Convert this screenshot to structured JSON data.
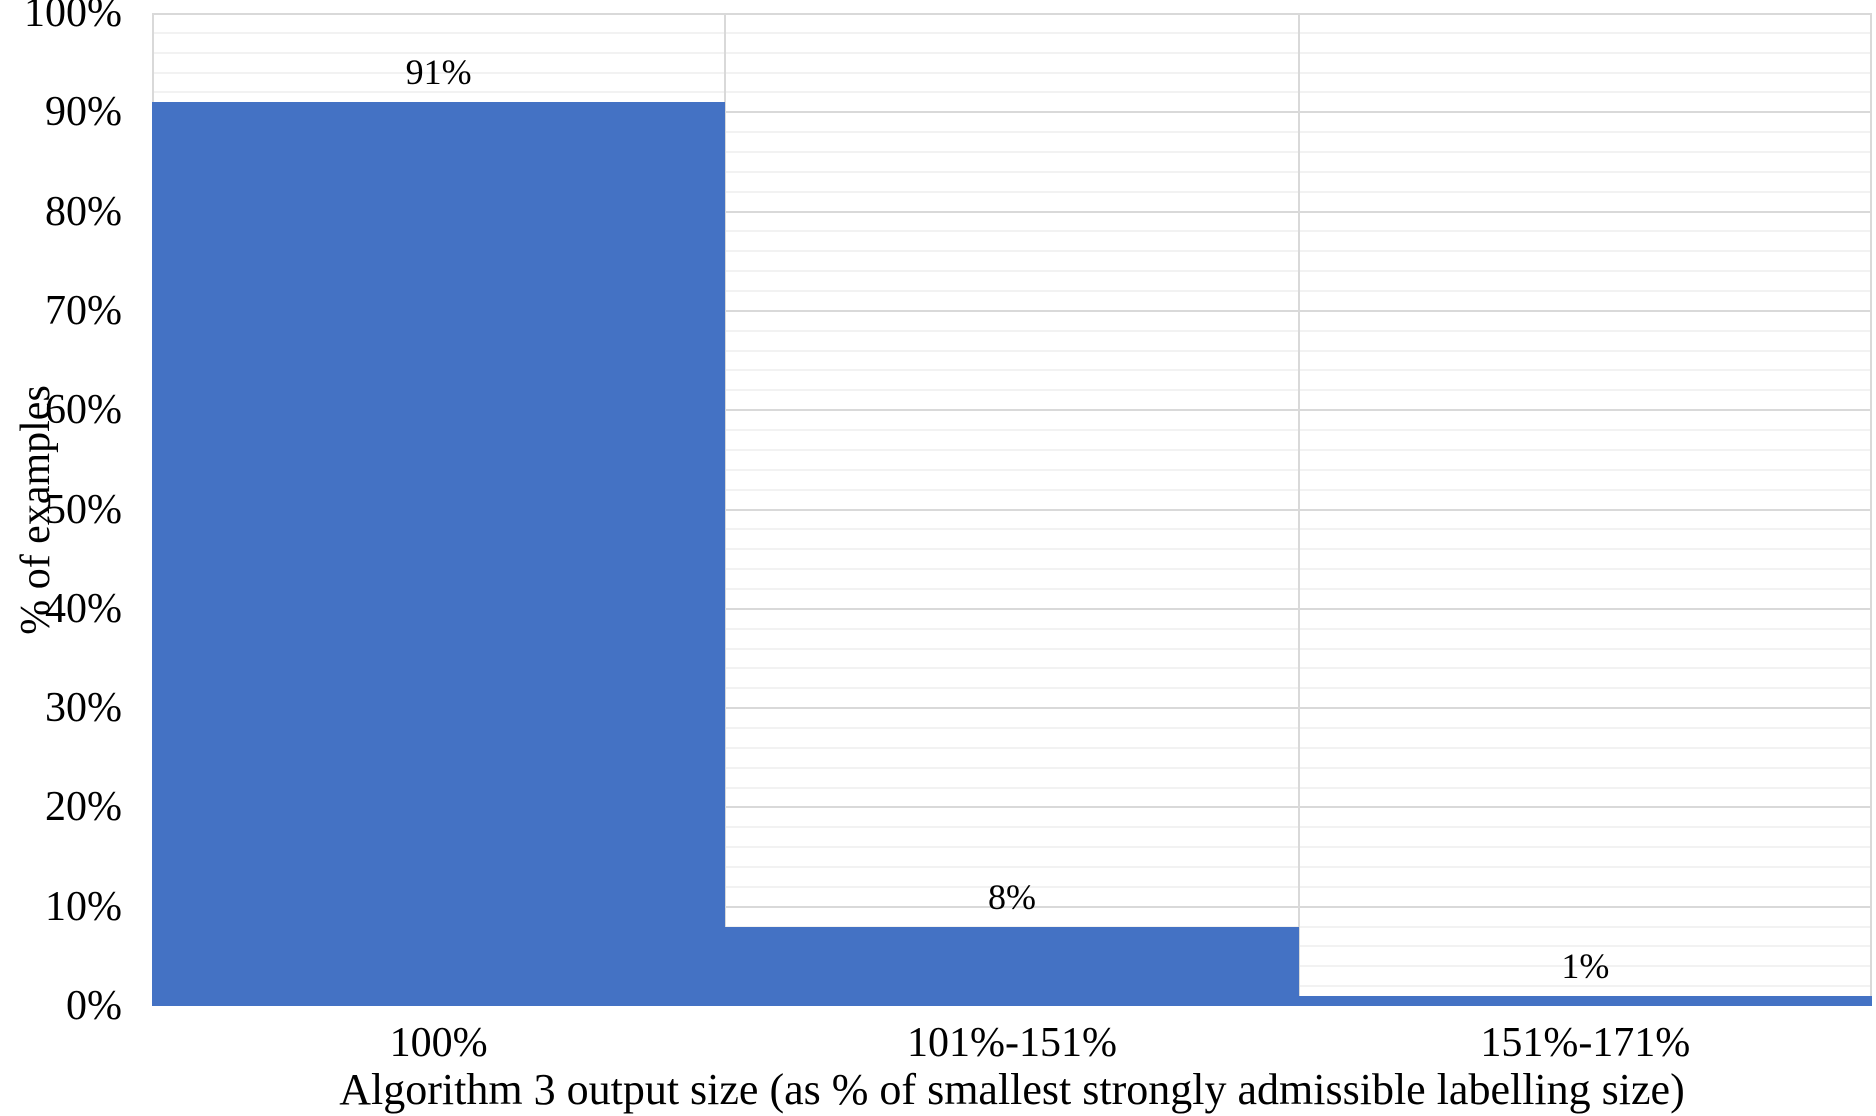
{
  "chart_data": {
    "type": "bar",
    "title": "",
    "categories": [
      "100%",
      "101%-151%",
      "151%-171%"
    ],
    "values": [
      91,
      8,
      1
    ],
    "data_labels": [
      "91%",
      "8%",
      "1%"
    ],
    "xlabel": "Algorithm 3 output size (as % of smallest strongly admissible labelling size)",
    "ylabel": "% of examples",
    "ylim": [
      0,
      100
    ],
    "y_tick_labels": [
      "0%",
      "10%",
      "20%",
      "30%",
      "40%",
      "50%",
      "60%",
      "70%",
      "80%",
      "90%",
      "100%"
    ],
    "y_major_step": 10,
    "y_minor_step": 2,
    "bar_gap": 0,
    "legend": "none",
    "grid": {
      "horizontal_major": true,
      "horizontal_minor": true,
      "vertical_category_boundaries": true,
      "plot_border": true
    },
    "colors": {
      "bar": "#4472C4",
      "major_gridline": "#D9D9D9",
      "minor_gridline": "#F2F2F2",
      "text": "#000000",
      "background": "#FFFFFF"
    }
  }
}
